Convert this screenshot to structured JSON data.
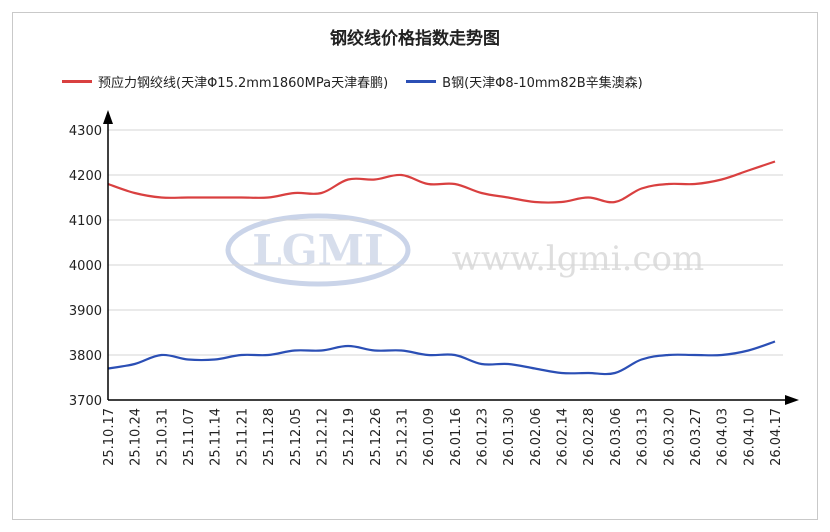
{
  "chart_data": {
    "type": "line",
    "title": "钢绞线价格指数走势图",
    "categories": [
      "25.10.17",
      "25.10.24",
      "25.10.31",
      "25.11.07",
      "25.11.14",
      "25.11.21",
      "25.11.28",
      "25.12.05",
      "25.12.12",
      "25.12.19",
      "25.12.26",
      "25.12.31",
      "26.01.09",
      "26.01.16",
      "26.01.23",
      "26.01.30",
      "26.02.06",
      "26.02.14",
      "26.02.28",
      "26.03.06",
      "26.03.13",
      "26.03.20",
      "26.03.27",
      "26.04.03",
      "26.04.10",
      "26.04.17"
    ],
    "series": [
      {
        "name": "预应力钢绞线(天津Φ15.2mm1860MPa天津春鹏)",
        "color": "#d94040",
        "values": [
          4180,
          4160,
          4150,
          4150,
          4150,
          4150,
          4150,
          4160,
          4160,
          4190,
          4190,
          4200,
          4180,
          4180,
          4160,
          4150,
          4140,
          4140,
          4150,
          4140,
          4170,
          4180,
          4180,
          4190,
          4210,
          4230
        ]
      },
      {
        "name": "B钢(天津Φ8-10mm82B辛集澳森)",
        "color": "#2b4fb5",
        "values": [
          3770,
          3780,
          3800,
          3790,
          3790,
          3800,
          3800,
          3810,
          3810,
          3820,
          3810,
          3810,
          3800,
          3800,
          3780,
          3780,
          3770,
          3760,
          3760,
          3760,
          3790,
          3800,
          3800,
          3800,
          3810,
          3830
        ]
      }
    ],
    "yticks": [
      3700,
      3800,
      3900,
      4000,
      4100,
      4200,
      4300
    ],
    "ylim": [
      3700,
      4300
    ],
    "grid": true,
    "legend_position": "top"
  },
  "watermark": {
    "logo_text": "LGMI",
    "site_text": "www.lgmi.com"
  }
}
